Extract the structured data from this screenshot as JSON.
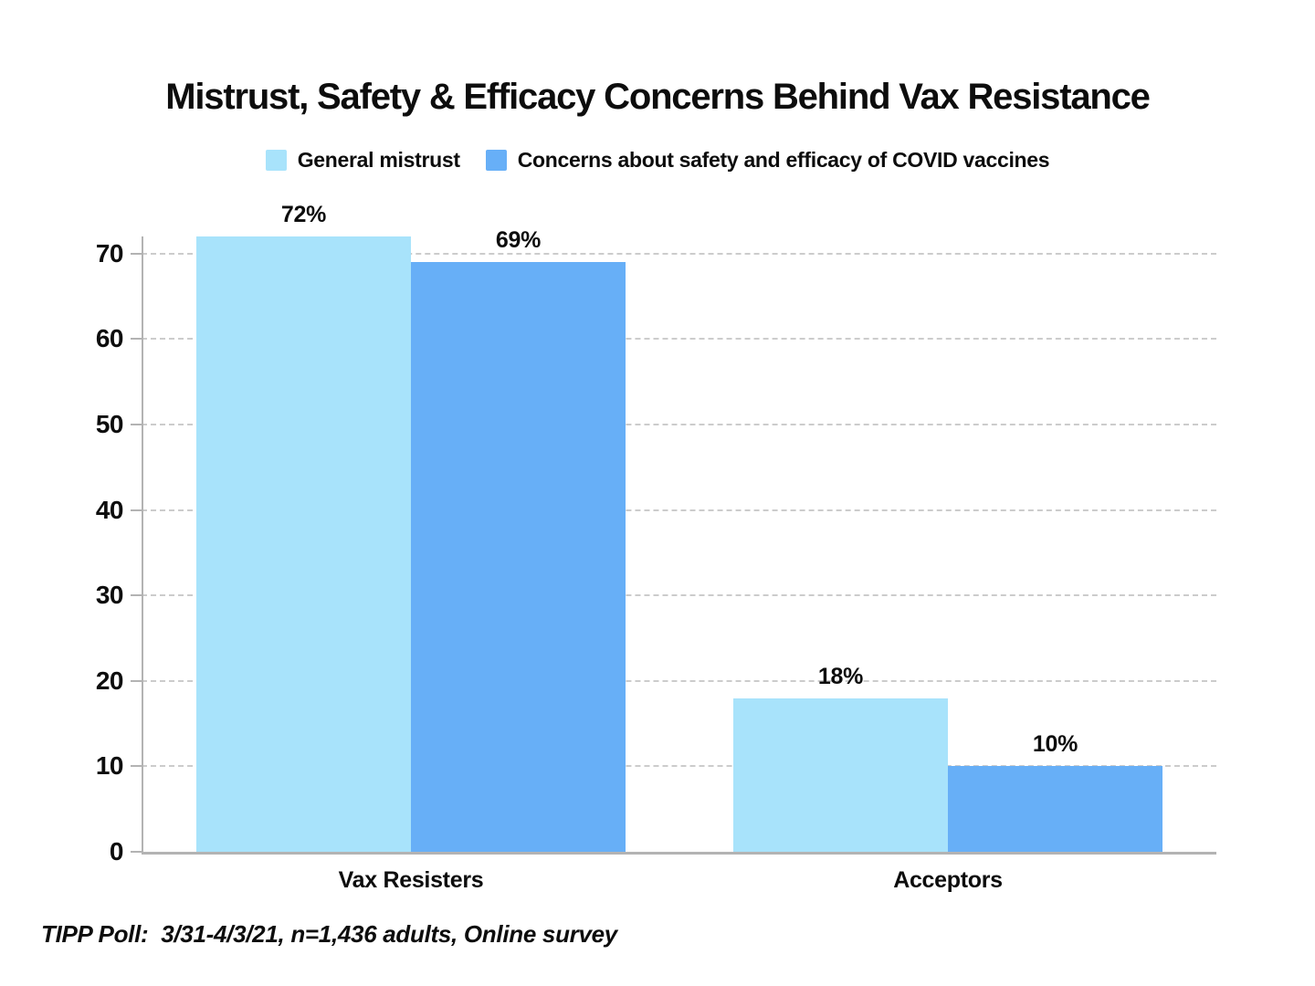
{
  "title": "Mistrust, Safety & Efficacy Concerns Behind Vax Resistance",
  "legend": {
    "items": [
      {
        "label": "General mistrust",
        "color": "#a8e3fb"
      },
      {
        "label": "Concerns about safety and efficacy of COVID vaccines",
        "color": "#67aff7"
      }
    ]
  },
  "footer": "TIPP Poll:  3/31-4/3/21, n=1,436 adults, Online survey",
  "chart_data": {
    "type": "bar",
    "title": "Mistrust, Safety & Efficacy Concerns Behind Vax Resistance",
    "categories": [
      "Vax Resisters",
      "Acceptors"
    ],
    "series": [
      {
        "name": "General mistrust",
        "color": "#a8e3fb",
        "values": [
          72,
          18
        ]
      },
      {
        "name": "Concerns about safety and efficacy of COVID vaccines",
        "color": "#67aff7",
        "values": [
          69,
          10
        ]
      }
    ],
    "value_labels": [
      [
        "72%",
        "18%"
      ],
      [
        "69%",
        "10%"
      ]
    ],
    "value_suffix": "%",
    "xlabel": "",
    "ylabel": "",
    "ylim": [
      0,
      72
    ],
    "yticks": [
      0,
      10,
      20,
      30,
      40,
      50,
      60,
      70
    ],
    "grid": "horizontal-dashed",
    "legend_position": "top",
    "source_note": "TIPP Poll:  3/31-4/3/21, n=1,436 adults, Online survey"
  }
}
